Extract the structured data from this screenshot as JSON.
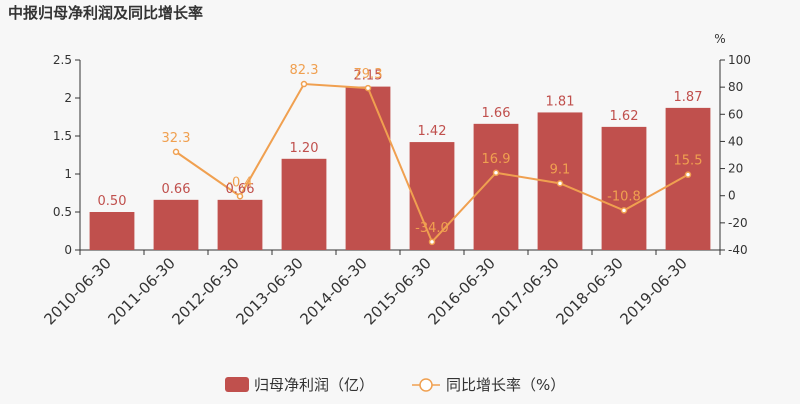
{
  "chart_data": {
    "type": "bar+line",
    "title": "中报归母净利润及同比增长率",
    "categories": [
      "2010-06-30",
      "2011-06-30",
      "2012-06-30",
      "2013-06-30",
      "2014-06-30",
      "2015-06-30",
      "2016-06-30",
      "2017-06-30",
      "2018-06-30",
      "2019-06-30"
    ],
    "series": [
      {
        "name": "归母净利润（亿）",
        "type": "bar",
        "axis": "left",
        "values": [
          0.5,
          0.66,
          0.66,
          1.2,
          2.15,
          1.42,
          1.66,
          1.81,
          1.62,
          1.87
        ],
        "labels": [
          "0.50",
          "0.66",
          "0.66",
          "1.20",
          "2.15",
          "1.42",
          "1.66",
          "1.81",
          "1.62",
          "1.87"
        ],
        "color": "#c0504d"
      },
      {
        "name": "同比增长率（%）",
        "type": "line",
        "axis": "right",
        "values": [
          null,
          32.3,
          -0.4,
          82.3,
          79.3,
          -34.0,
          16.9,
          9.1,
          -10.8,
          15.5
        ],
        "labels": [
          "",
          "32.3",
          "-0.4",
          "82.3",
          "79.3",
          "-34.0",
          "16.9",
          "9.1",
          "-10.8",
          "15.5"
        ],
        "color": "#f0a050"
      }
    ],
    "y_left": {
      "min": 0,
      "max": 2.5,
      "ticks": [
        "0",
        "0.5",
        "1",
        "1.5",
        "2",
        "2.5"
      ]
    },
    "y_right": {
      "min": -40,
      "max": 100,
      "ticks": [
        "-40",
        "-20",
        "0",
        "20",
        "40",
        "60",
        "80",
        "100"
      ],
      "unit": "%"
    },
    "legend_position": "bottom-center",
    "grid": false
  }
}
